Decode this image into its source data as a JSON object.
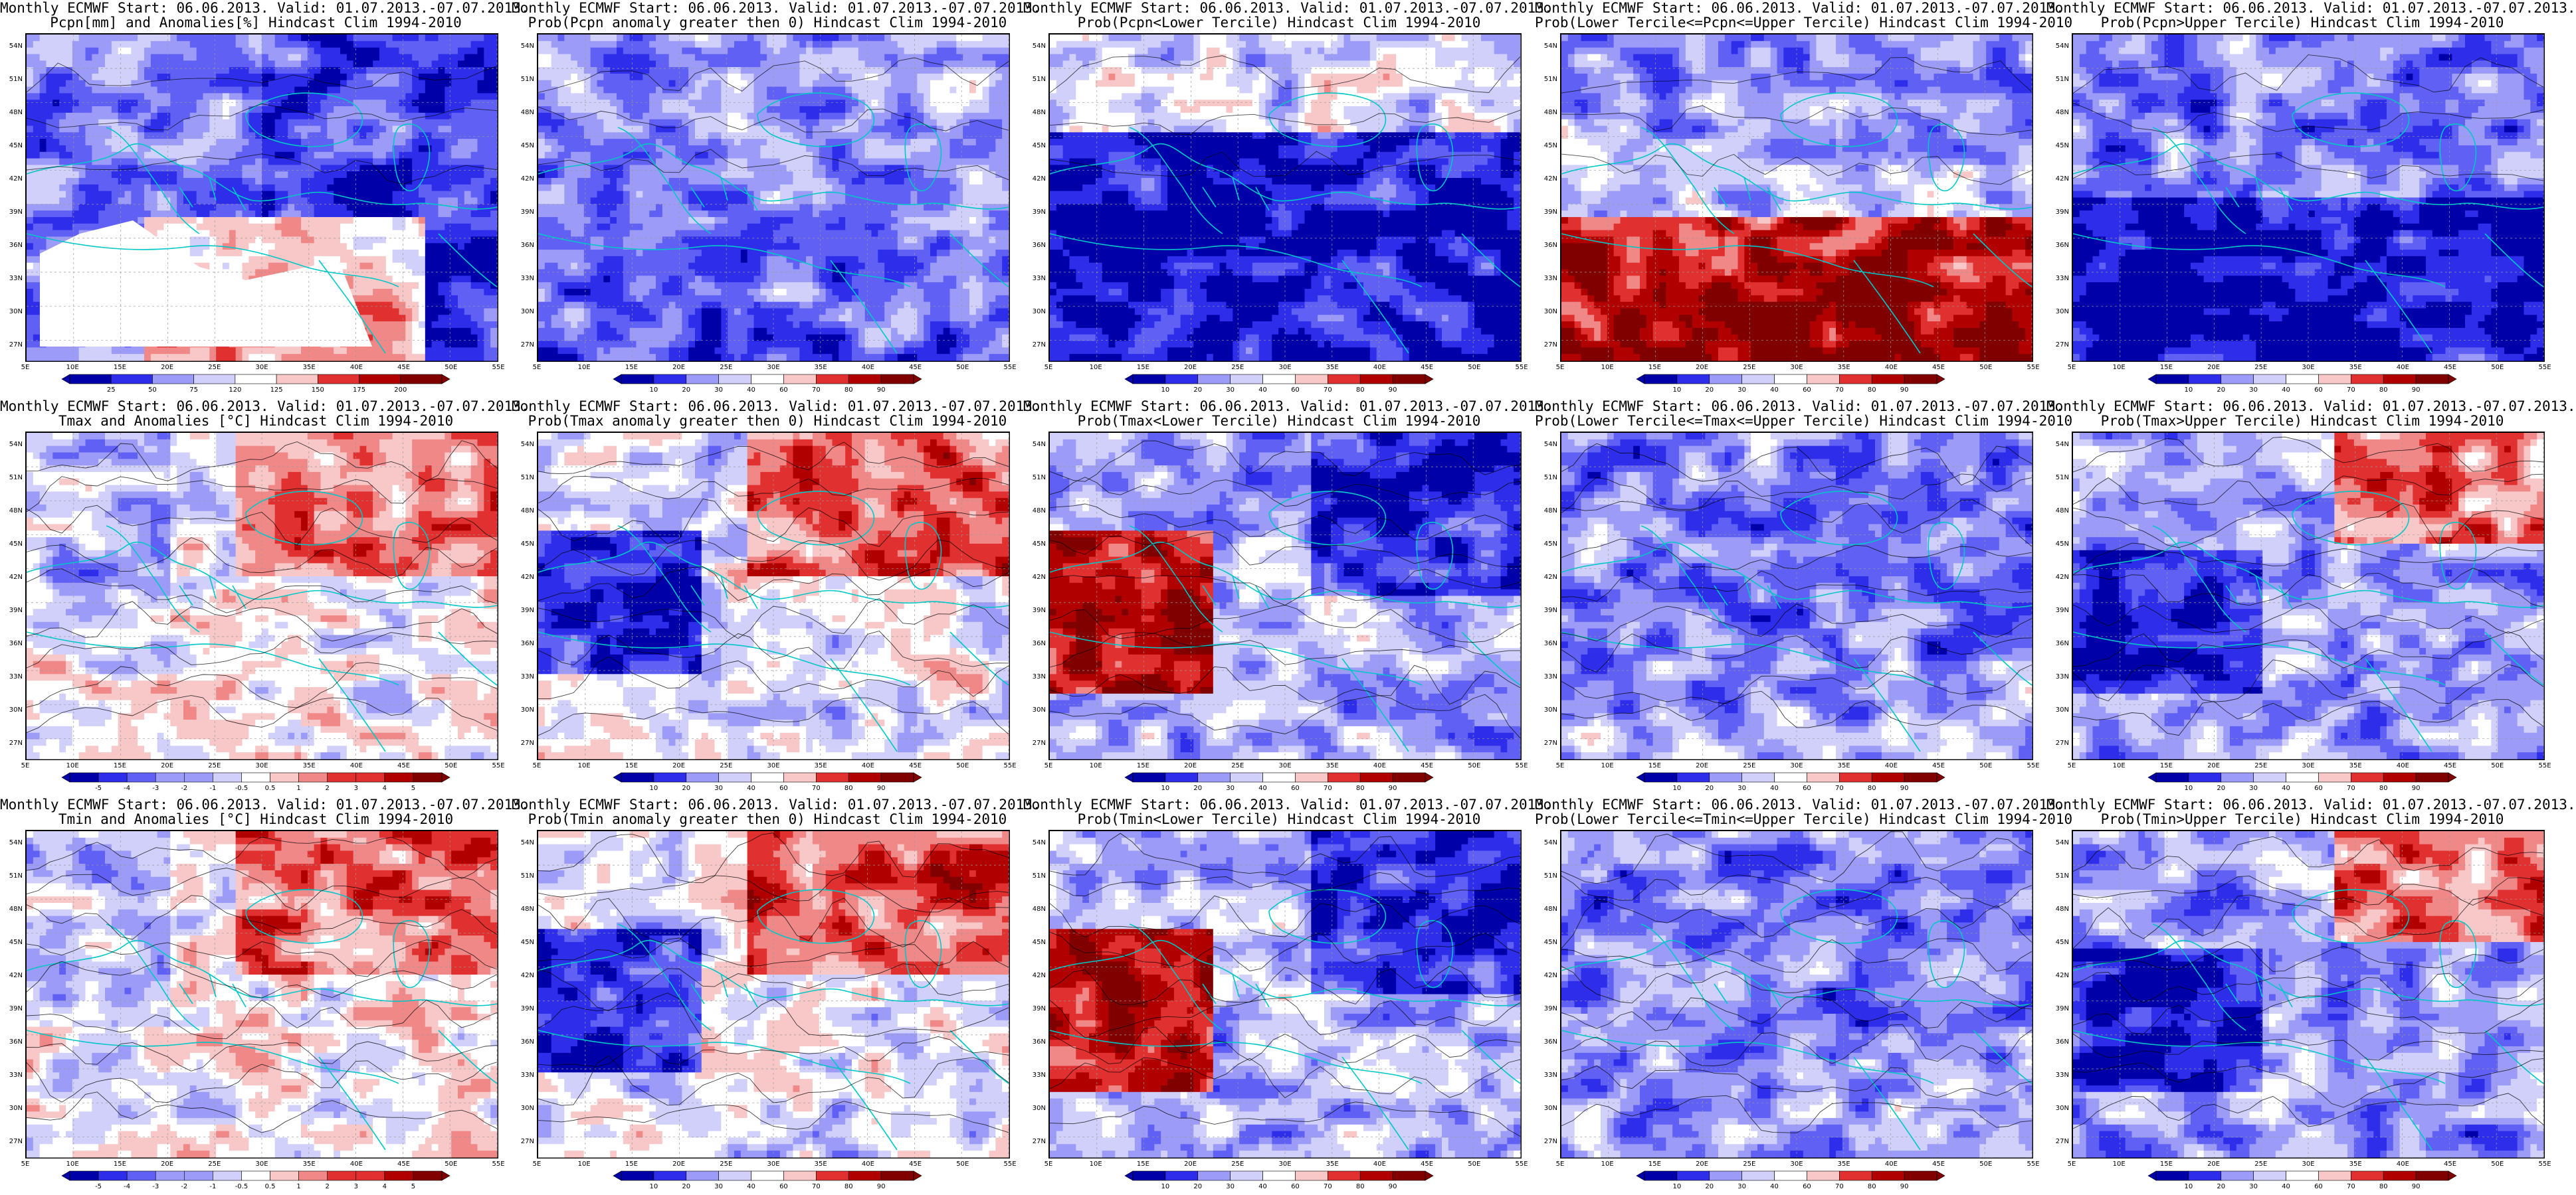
{
  "panels": [
    {
      "row": 0,
      "col": 0,
      "kind": "anom_pcpn",
      "title1": "Monthly ECMWF Start: 06.06.2013. Valid: 01.07.2013.-07.07.2013.",
      "title2": "Pcpn[mm] and Anomalies[%] Hindcast Clim 1994-2010",
      "colorbar_ticks": [
        "25",
        "50",
        "75",
        "120",
        "125",
        "150",
        "175",
        "200"
      ]
    },
    {
      "row": 0,
      "col": 1,
      "kind": "prob_pos",
      "title1": "Monthly ECMWF Start: 06.06.2013. Valid: 01.07.2013.-07.07.2013.",
      "title2": "Prob(Pcpn anomaly greater then 0) Hindcast Clim 1994-2010",
      "colorbar_ticks": [
        "10",
        "20",
        "30",
        "40",
        "60",
        "70",
        "80",
        "90"
      ]
    },
    {
      "row": 0,
      "col": 2,
      "kind": "prob_lower",
      "title1": "Monthly ECMWF Start: 06.06.2013. Valid: 01.07.2013.-07.07.2013.",
      "title2": "Prob(Pcpn<Lower Tercile) Hindcast Clim 1994-2010",
      "colorbar_ticks": [
        "10",
        "20",
        "30",
        "40",
        "60",
        "70",
        "80",
        "90"
      ]
    },
    {
      "row": 0,
      "col": 3,
      "kind": "prob_middle_hot",
      "title1": "Monthly ECMWF Start: 06.06.2013. Valid: 01.07.2013.-07.07.2013.",
      "title2": "Prob(Lower Tercile<=Pcpn<=Upper Tercile) Hindcast Clim 1994-2010",
      "colorbar_ticks": [
        "10",
        "20",
        "30",
        "40",
        "60",
        "70",
        "80",
        "90"
      ]
    },
    {
      "row": 0,
      "col": 4,
      "kind": "prob_upper_cold",
      "title1": "Monthly ECMWF Start: 06.06.2013. Valid: 01.07.2013.-07.07.2013.",
      "title2": "Prob(Pcpn>Upper Tercile) Hindcast Clim 1994-2010",
      "colorbar_ticks": [
        "10",
        "20",
        "30",
        "40",
        "60",
        "70",
        "80",
        "90"
      ]
    },
    {
      "row": 1,
      "col": 0,
      "kind": "anom_temp",
      "title1": "Monthly ECMWF Start: 06.06.2013. Valid: 01.07.2013.-07.07.2013.",
      "title2": "Tmax and Anomalies [°C] Hindcast Clim 1994-2010",
      "colorbar_ticks": [
        "-5",
        "-4",
        "-3",
        "-2",
        "-1",
        "-0.5",
        "0.5",
        "1",
        "2",
        "3",
        "4",
        "5"
      ]
    },
    {
      "row": 1,
      "col": 1,
      "kind": "prob_pos_temp",
      "title1": "Monthly ECMWF Start: 06.06.2013. Valid: 01.07.2013.-07.07.2013.",
      "title2": "Prob(Tmax anomaly greater then 0) Hindcast Clim 1994-2010",
      "colorbar_ticks": [
        "10",
        "20",
        "30",
        "40",
        "60",
        "70",
        "80",
        "90"
      ]
    },
    {
      "row": 1,
      "col": 2,
      "kind": "prob_lower_temp",
      "title1": "Monthly ECMWF Start: 06.06.2013. Valid: 01.07.2013.-07.07.2013.",
      "title2": "Prob(Tmax<Lower Tercile) Hindcast Clim 1994-2010",
      "colorbar_ticks": [
        "10",
        "20",
        "30",
        "40",
        "60",
        "70",
        "80",
        "90"
      ]
    },
    {
      "row": 1,
      "col": 3,
      "kind": "prob_middle_cold",
      "title1": "Monthly ECMWF Start: 06.06.2013. Valid: 01.07.2013.-07.07.2013.",
      "title2": "Prob(Lower Tercile<=Tmax<=Upper Tercile) Hindcast Clim 1994-2010",
      "colorbar_ticks": [
        "10",
        "20",
        "30",
        "40",
        "60",
        "70",
        "80",
        "90"
      ]
    },
    {
      "row": 1,
      "col": 4,
      "kind": "prob_upper_temp",
      "title1": "Monthly ECMWF Start: 06.06.2013. Valid: 01.07.2013.-07.07.2013.",
      "title2": "Prob(Tmax>Upper Tercile) Hindcast Clim 1994-2010",
      "colorbar_ticks": [
        "10",
        "20",
        "30",
        "40",
        "60",
        "70",
        "80",
        "90"
      ]
    },
    {
      "row": 2,
      "col": 0,
      "kind": "anom_temp",
      "title1": "Monthly ECMWF Start: 06.06.2013. Valid: 01.07.2013.-07.07.2013.",
      "title2": "Tmin and Anomalies [°C] Hindcast Clim 1994-2010",
      "colorbar_ticks": [
        "-5",
        "-4",
        "-3",
        "-2",
        "-1",
        "-0.5",
        "0.5",
        "1",
        "2",
        "3",
        "4",
        "5"
      ]
    },
    {
      "row": 2,
      "col": 1,
      "kind": "prob_pos_temp",
      "title1": "Monthly ECMWF Start: 06.06.2013. Valid: 01.07.2013.-07.07.2013.",
      "title2": "Prob(Tmin anomaly greater then 0) Hindcast Clim 1994-2010",
      "colorbar_ticks": [
        "10",
        "20",
        "30",
        "40",
        "60",
        "70",
        "80",
        "90"
      ]
    },
    {
      "row": 2,
      "col": 2,
      "kind": "prob_lower_temp",
      "title1": "Monthly ECMWF Start: 06.06.2013. Valid: 01.07.2013.-07.07.2013.",
      "title2": "Prob(Tmin<Lower Tercile) Hindcast Clim 1994-2010",
      "colorbar_ticks": [
        "10",
        "20",
        "30",
        "40",
        "60",
        "70",
        "80",
        "90"
      ]
    },
    {
      "row": 2,
      "col": 3,
      "kind": "prob_middle_cold",
      "title1": "Monthly ECMWF Start: 06.06.2013. Valid: 01.07.2013.-07.07.2013.",
      "title2": "Prob(Lower Tercile<=Tmin<=Upper Tercile) Hindcast Clim 1994-2010",
      "colorbar_ticks": [
        "10",
        "20",
        "30",
        "40",
        "60",
        "70",
        "80",
        "90"
      ]
    },
    {
      "row": 2,
      "col": 4,
      "kind": "prob_upper_temp",
      "title1": "Monthly ECMWF Start: 06.06.2013. Valid: 01.07.2013.-07.07.2013.",
      "title2": "Prob(Tmin>Upper Tercile) Hindcast Clim 1994-2010",
      "colorbar_ticks": [
        "10",
        "20",
        "30",
        "40",
        "60",
        "70",
        "80",
        "90"
      ]
    }
  ],
  "lat_labels": [
    "54N",
    "51N",
    "48N",
    "45N",
    "42N",
    "39N",
    "36N",
    "33N",
    "30N",
    "27N"
  ],
  "lon_labels": [
    "5E",
    "10E",
    "15E",
    "20E",
    "25E",
    "30E",
    "35E",
    "40E",
    "45E",
    "50E",
    "55E"
  ],
  "colors": {
    "prob": [
      "#0000a8",
      "#2e2eea",
      "#6060f4",
      "#9c9cf8",
      "#d0d0fb",
      "#ffffff",
      "#f8c8c8",
      "#f08888",
      "#e03030",
      "#b00000",
      "#800000"
    ],
    "anom": [
      "#0000a8",
      "#2e2eea",
      "#6060f4",
      "#9c9cf8",
      "#d0d0fb",
      "#ffffff",
      "#f8c8c8",
      "#f08888",
      "#e03030",
      "#b00000",
      "#800000"
    ],
    "coast": "#00c8c8",
    "contour": "#000000"
  }
}
